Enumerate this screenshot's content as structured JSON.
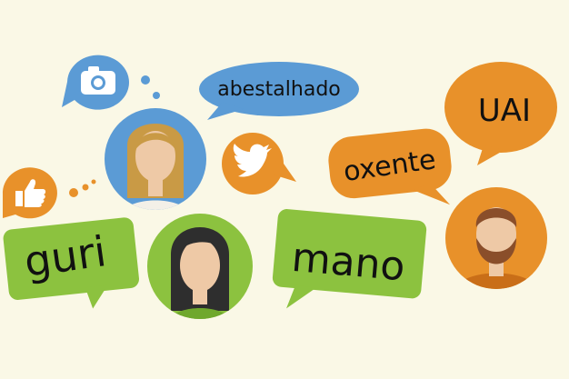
{
  "words": {
    "abestalhado": "abestalhado",
    "uai": "UAI",
    "oxente": "oxente",
    "guri": "guri",
    "mano": "mano"
  },
  "icons": {
    "camera": "camera-icon",
    "twitter": "twitter-bird-icon",
    "like": "thumbs-up-icon"
  },
  "colors": {
    "background": "#faf8e6",
    "blue": "#5b9bd5",
    "orange": "#e8912a",
    "green": "#8cc23f",
    "skin": "#eec9a6",
    "blond_hair": "#c99a45",
    "dark_hair": "#2e2e2e",
    "brown_hair": "#8a4e2a"
  }
}
